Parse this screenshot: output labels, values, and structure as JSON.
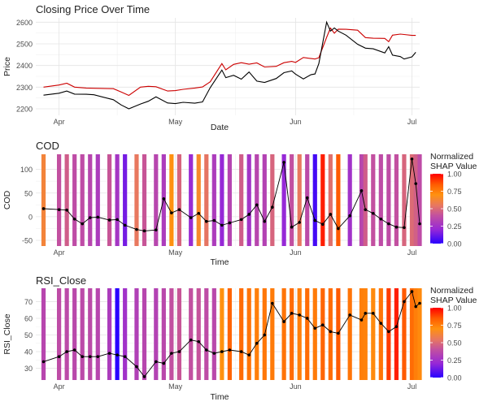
{
  "chart_data": [
    {
      "type": "line",
      "title": "Closing Price Over Time",
      "xlabel": "Date",
      "ylabel": "Price",
      "xlim": [
        "2024-03-26",
        "2024-07-03"
      ],
      "ylim": [
        2170,
        2620
      ],
      "x_ticks": [
        {
          "date": "2024-04-01",
          "label": "Apr"
        },
        {
          "date": "2024-05-01",
          "label": "May"
        },
        {
          "date": "2024-06-01",
          "label": "Jun"
        },
        {
          "date": "2024-07-01",
          "label": "Jul"
        }
      ],
      "y_ticks": [
        2200,
        2300,
        2400,
        2500,
        2600
      ],
      "grid": true,
      "series": [
        {
          "color": "#cc0000",
          "points": [
            [
              "2024-03-28",
              2300
            ],
            [
              "2024-04-01",
              2310
            ],
            [
              "2024-04-03",
              2318
            ],
            [
              "2024-04-05",
              2300
            ],
            [
              "2024-04-08",
              2296
            ],
            [
              "2024-04-10",
              2295
            ],
            [
              "2024-04-15",
              2293
            ],
            [
              "2024-04-17",
              2278
            ],
            [
              "2024-04-19",
              2262
            ],
            [
              "2024-04-22",
              2300
            ],
            [
              "2024-04-24",
              2304
            ],
            [
              "2024-04-26",
              2302
            ],
            [
              "2024-04-29",
              2282
            ],
            [
              "2024-05-01",
              2284
            ],
            [
              "2024-05-03",
              2290
            ],
            [
              "2024-05-06",
              2296
            ],
            [
              "2024-05-08",
              2301
            ],
            [
              "2024-05-10",
              2325
            ],
            [
              "2024-05-13",
              2409
            ],
            [
              "2024-05-14",
              2380
            ],
            [
              "2024-05-16",
              2405
            ],
            [
              "2024-05-18",
              2413
            ],
            [
              "2024-05-20",
              2406
            ],
            [
              "2024-05-22",
              2412
            ],
            [
              "2024-05-24",
              2393
            ],
            [
              "2024-05-27",
              2396
            ],
            [
              "2024-05-29",
              2413
            ],
            [
              "2024-05-31",
              2419
            ],
            [
              "2024-06-01",
              2414
            ],
            [
              "2024-06-03",
              2437
            ],
            [
              "2024-06-05",
              2432
            ],
            [
              "2024-06-06",
              2430
            ],
            [
              "2024-06-07",
              2436
            ],
            [
              "2024-06-09",
              2530
            ],
            [
              "2024-06-10",
              2573
            ],
            [
              "2024-06-11",
              2549
            ],
            [
              "2024-06-12",
              2568
            ],
            [
              "2024-06-14",
              2567
            ],
            [
              "2024-06-17",
              2563
            ],
            [
              "2024-06-19",
              2529
            ],
            [
              "2024-06-21",
              2526
            ],
            [
              "2024-06-24",
              2525
            ],
            [
              "2024-06-25",
              2510
            ],
            [
              "2024-06-26",
              2540
            ],
            [
              "2024-06-28",
              2545
            ],
            [
              "2024-06-29",
              2543
            ],
            [
              "2024-07-01",
              2539
            ],
            [
              "2024-07-02",
              2539
            ]
          ]
        },
        {
          "color": "#000000",
          "points": [
            [
              "2024-03-28",
              2263
            ],
            [
              "2024-04-01",
              2272
            ],
            [
              "2024-04-03",
              2282
            ],
            [
              "2024-04-05",
              2268
            ],
            [
              "2024-04-08",
              2267
            ],
            [
              "2024-04-10",
              2265
            ],
            [
              "2024-04-15",
              2242
            ],
            [
              "2024-04-17",
              2218
            ],
            [
              "2024-04-19",
              2200
            ],
            [
              "2024-04-22",
              2222
            ],
            [
              "2024-04-24",
              2235
            ],
            [
              "2024-04-26",
              2255
            ],
            [
              "2024-04-29",
              2227
            ],
            [
              "2024-05-01",
              2224
            ],
            [
              "2024-05-03",
              2230
            ],
            [
              "2024-05-06",
              2226
            ],
            [
              "2024-05-08",
              2232
            ],
            [
              "2024-05-10",
              2298
            ],
            [
              "2024-05-13",
              2379
            ],
            [
              "2024-05-14",
              2344
            ],
            [
              "2024-05-16",
              2355
            ],
            [
              "2024-05-18",
              2337
            ],
            [
              "2024-05-20",
              2370
            ],
            [
              "2024-05-22",
              2328
            ],
            [
              "2024-05-24",
              2322
            ],
            [
              "2024-05-27",
              2340
            ],
            [
              "2024-05-29",
              2367
            ],
            [
              "2024-05-31",
              2375
            ],
            [
              "2024-06-01",
              2360
            ],
            [
              "2024-06-03",
              2338
            ],
            [
              "2024-06-05",
              2358
            ],
            [
              "2024-06-06",
              2361
            ],
            [
              "2024-06-07",
              2409
            ],
            [
              "2024-06-09",
              2600
            ],
            [
              "2024-06-10",
              2559
            ],
            [
              "2024-06-11",
              2573
            ],
            [
              "2024-06-12",
              2559
            ],
            [
              "2024-06-14",
              2540
            ],
            [
              "2024-06-17",
              2498
            ],
            [
              "2024-06-19",
              2480
            ],
            [
              "2024-06-21",
              2477
            ],
            [
              "2024-06-24",
              2458
            ],
            [
              "2024-06-25",
              2487
            ],
            [
              "2024-06-26",
              2448
            ],
            [
              "2024-06-28",
              2441
            ],
            [
              "2024-06-29",
              2430
            ],
            [
              "2024-07-01",
              2440
            ],
            [
              "2024-07-02",
              2461
            ]
          ]
        }
      ]
    },
    {
      "type": "line",
      "title": "COD",
      "xlabel": "Time",
      "ylabel": "COD",
      "xlim": [
        "2024-03-26",
        "2024-07-03"
      ],
      "ylim": [
        -62,
        132
      ],
      "x_ticks": [
        {
          "date": "2024-04-01",
          "label": "Apr"
        },
        {
          "date": "2024-05-01",
          "label": "May"
        },
        {
          "date": "2024-06-01",
          "label": "Jun"
        },
        {
          "date": "2024-07-01",
          "label": "Jul"
        }
      ],
      "y_ticks": [
        -50,
        0,
        50,
        100
      ],
      "grid": true,
      "legend": {
        "title": "Normalized SHAP Value",
        "ticks": [
          "0.00",
          "0.25",
          "0.50",
          "0.75",
          "1.00"
        ],
        "position": "right"
      },
      "band_shap": [
        0.62,
        0.4,
        0.45,
        0.38,
        0.38,
        0.35,
        0.3,
        0.42,
        0.27,
        0.14,
        0.55,
        0.42,
        0.35,
        0.3,
        0.7,
        0.48,
        0.22,
        0.65,
        0.54,
        0.3,
        0.2,
        0.34,
        0.45,
        0.26,
        0.35,
        0.33,
        0.48,
        0.2,
        0.4,
        0.55,
        0.37,
        0.05,
        0.95,
        0.52,
        0.85,
        0.25,
        0.35,
        0.45,
        0.4,
        0.38,
        0.38,
        0.4,
        0.48,
        0.5,
        0.46,
        0.38
      ],
      "points": [
        [
          "2024-03-28",
          17
        ],
        [
          "2024-04-01",
          15
        ],
        [
          "2024-04-03",
          14
        ],
        [
          "2024-04-05",
          -5
        ],
        [
          "2024-04-07",
          -15
        ],
        [
          "2024-04-09",
          -2
        ],
        [
          "2024-04-11",
          -1
        ],
        [
          "2024-04-14",
          -7
        ],
        [
          "2024-04-16",
          -6
        ],
        [
          "2024-04-18",
          -18
        ],
        [
          "2024-04-21",
          -27
        ],
        [
          "2024-04-23",
          -30
        ],
        [
          "2024-04-26",
          -28
        ],
        [
          "2024-04-28",
          38
        ],
        [
          "2024-04-30",
          8
        ],
        [
          "2024-05-02",
          15
        ],
        [
          "2024-05-05",
          -2
        ],
        [
          "2024-05-07",
          7
        ],
        [
          "2024-05-09",
          -10
        ],
        [
          "2024-05-11",
          -8
        ],
        [
          "2024-05-13",
          -18
        ],
        [
          "2024-05-15",
          -13
        ],
        [
          "2024-05-18",
          -6
        ],
        [
          "2024-05-20",
          5
        ],
        [
          "2024-05-22",
          25
        ],
        [
          "2024-05-24",
          -10
        ],
        [
          "2024-05-26",
          20
        ],
        [
          "2024-05-29",
          115
        ],
        [
          "2024-05-31",
          -22
        ],
        [
          "2024-06-02",
          -12
        ],
        [
          "2024-06-04",
          40
        ],
        [
          "2024-06-06",
          -8
        ],
        [
          "2024-06-08",
          -16
        ],
        [
          "2024-06-10",
          5
        ],
        [
          "2024-06-12",
          -25
        ],
        [
          "2024-06-15",
          2
        ],
        [
          "2024-06-18",
          55
        ],
        [
          "2024-06-19",
          15
        ],
        [
          "2024-06-21",
          7
        ],
        [
          "2024-06-23",
          -5
        ],
        [
          "2024-06-25",
          -15
        ],
        [
          "2024-06-27",
          -22
        ],
        [
          "2024-06-29",
          -23
        ],
        [
          "2024-07-01",
          122
        ],
        [
          "2024-07-02",
          70
        ],
        [
          "2024-07-03",
          -15
        ]
      ]
    },
    {
      "type": "line",
      "title": "RSI_Close",
      "xlabel": "Time",
      "ylabel": "RSI_Close",
      "xlim": [
        "2024-03-26",
        "2024-07-03"
      ],
      "ylim": [
        23,
        78
      ],
      "x_ticks": [
        {
          "date": "2024-04-01",
          "label": "Apr"
        },
        {
          "date": "2024-05-01",
          "label": "May"
        },
        {
          "date": "2024-06-01",
          "label": "Jun"
        },
        {
          "date": "2024-07-01",
          "label": "Jul"
        }
      ],
      "y_ticks": [
        30,
        40,
        50,
        60,
        70
      ],
      "grid": true,
      "legend": {
        "title": "Normalized SHAP Value",
        "ticks": [
          "0.00",
          "0.25",
          "0.50",
          "0.75",
          "1.00"
        ],
        "position": "right"
      },
      "band_shap": [
        0.35,
        0.38,
        0.37,
        0.36,
        0.37,
        0.37,
        0.35,
        0.3,
        0.0,
        0.25,
        0.32,
        0.35,
        0.33,
        0.36,
        0.4,
        0.42,
        0.4,
        0.41,
        0.38,
        0.36,
        0.7,
        0.82,
        0.8,
        0.78,
        0.75,
        0.77,
        0.76,
        0.78,
        0.8,
        0.75,
        0.8,
        0.76,
        0.82,
        0.8,
        0.85,
        0.78,
        0.75,
        0.74,
        0.72,
        0.78,
        0.9,
        0.95,
        0.85,
        0.8,
        0.75,
        0.72
      ],
      "points": [
        [
          "2024-03-28",
          34
        ],
        [
          "2024-04-01",
          37
        ],
        [
          "2024-04-03",
          40
        ],
        [
          "2024-04-05",
          41
        ],
        [
          "2024-04-07",
          37
        ],
        [
          "2024-04-09",
          37
        ],
        [
          "2024-04-11",
          37
        ],
        [
          "2024-04-14",
          39
        ],
        [
          "2024-04-16",
          38
        ],
        [
          "2024-04-18",
          37
        ],
        [
          "2024-04-21",
          31
        ],
        [
          "2024-04-23",
          25
        ],
        [
          "2024-04-26",
          34
        ],
        [
          "2024-04-28",
          33
        ],
        [
          "2024-04-30",
          39
        ],
        [
          "2024-05-02",
          40
        ],
        [
          "2024-05-05",
          47
        ],
        [
          "2024-05-07",
          46
        ],
        [
          "2024-05-09",
          41
        ],
        [
          "2024-05-11",
          39
        ],
        [
          "2024-05-13",
          40
        ],
        [
          "2024-05-15",
          41
        ],
        [
          "2024-05-18",
          40
        ],
        [
          "2024-05-20",
          38
        ],
        [
          "2024-05-22",
          45
        ],
        [
          "2024-05-24",
          50
        ],
        [
          "2024-05-26",
          69
        ],
        [
          "2024-05-29",
          58
        ],
        [
          "2024-05-31",
          63
        ],
        [
          "2024-06-02",
          62
        ],
        [
          "2024-06-04",
          60
        ],
        [
          "2024-06-06",
          54
        ],
        [
          "2024-06-08",
          56
        ],
        [
          "2024-06-10",
          52
        ],
        [
          "2024-06-12",
          51
        ],
        [
          "2024-06-15",
          62
        ],
        [
          "2024-06-18",
          59
        ],
        [
          "2024-06-19",
          63
        ],
        [
          "2024-06-21",
          63
        ],
        [
          "2024-06-23",
          57
        ],
        [
          "2024-06-25",
          52
        ],
        [
          "2024-06-27",
          55
        ],
        [
          "2024-06-29",
          70
        ],
        [
          "2024-07-01",
          76
        ],
        [
          "2024-07-02",
          67
        ],
        [
          "2024-07-03",
          69
        ]
      ]
    }
  ]
}
